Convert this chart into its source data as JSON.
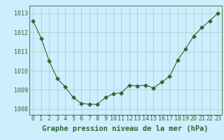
{
  "x": [
    0,
    1,
    2,
    3,
    4,
    5,
    6,
    7,
    8,
    9,
    10,
    11,
    12,
    13,
    14,
    15,
    16,
    17,
    18,
    19,
    20,
    21,
    22,
    23
  ],
  "y": [
    1012.6,
    1011.7,
    1010.5,
    1009.6,
    1009.15,
    1008.6,
    1008.3,
    1008.25,
    1008.25,
    1008.6,
    1008.8,
    1008.85,
    1009.25,
    1009.2,
    1009.25,
    1009.1,
    1009.4,
    1009.7,
    1010.55,
    1011.15,
    1011.8,
    1012.25,
    1012.6,
    1013.0
  ],
  "line_color": "#2d6a2d",
  "marker": "D",
  "marker_size": 2.5,
  "bg_color": "#cceeff",
  "grid_color": "#aaccbb",
  "xlabel": "Graphe pression niveau de la mer (hPa)",
  "xlabel_fontsize": 7.5,
  "ylabel_ticks": [
    1008,
    1009,
    1010,
    1011,
    1012,
    1013
  ],
  "xlim": [
    -0.5,
    23.5
  ],
  "ylim": [
    1007.7,
    1013.4
  ],
  "tick_fontsize": 6.0,
  "xlabel_color": "#2d6a2d"
}
